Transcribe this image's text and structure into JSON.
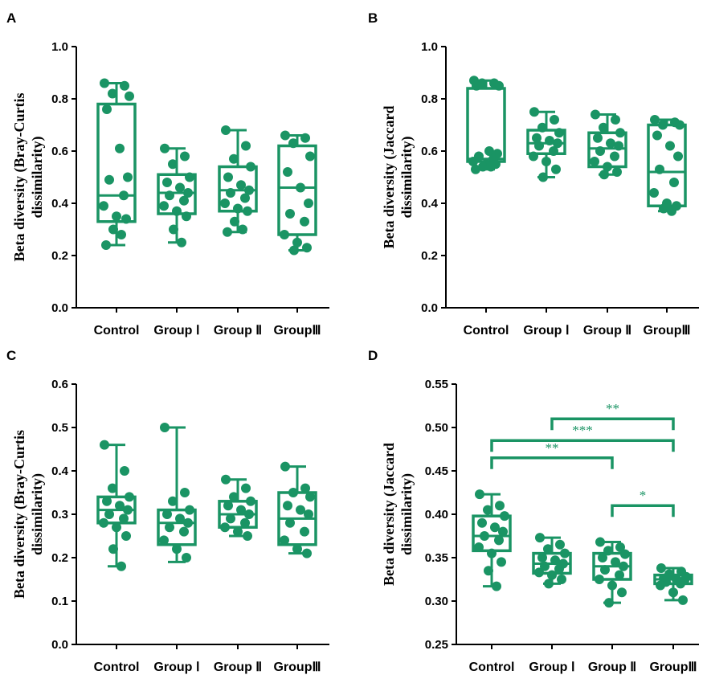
{
  "color": "#1a9464",
  "chart_data": [
    {
      "type": "box",
      "panel": "A",
      "categories": [
        "Control",
        "Group Ⅰ",
        "Group Ⅱ",
        "GroupⅢ"
      ],
      "ylabel_lines": [
        "Beta diversity (Bray-Curtis",
        "dissimilarity)"
      ],
      "ylim": [
        0,
        1.0
      ],
      "yticks": [
        0.0,
        0.2,
        0.4,
        0.6,
        0.8,
        1.0
      ],
      "tick_decimals": 1,
      "boxes": [
        {
          "min": 0.24,
          "q1": 0.33,
          "median": 0.43,
          "q3": 0.78,
          "max": 0.86
        },
        {
          "min": 0.25,
          "q1": 0.36,
          "median": 0.44,
          "q3": 0.51,
          "max": 0.61
        },
        {
          "min": 0.29,
          "q1": 0.37,
          "median": 0.45,
          "q3": 0.54,
          "max": 0.68
        },
        {
          "min": 0.22,
          "q1": 0.28,
          "median": 0.46,
          "q3": 0.62,
          "max": 0.66
        }
      ],
      "points": [
        [
          0.86,
          0.85,
          0.82,
          0.81,
          0.76,
          0.61,
          0.5,
          0.49,
          0.43,
          0.39,
          0.35,
          0.34,
          0.3,
          0.28,
          0.24
        ],
        [
          0.61,
          0.58,
          0.55,
          0.5,
          0.48,
          0.46,
          0.44,
          0.43,
          0.41,
          0.39,
          0.37,
          0.35,
          0.3,
          0.25
        ],
        [
          0.68,
          0.62,
          0.57,
          0.54,
          0.5,
          0.47,
          0.45,
          0.44,
          0.42,
          0.4,
          0.38,
          0.37,
          0.33,
          0.3,
          0.29
        ],
        [
          0.66,
          0.65,
          0.63,
          0.58,
          0.52,
          0.46,
          0.4,
          0.36,
          0.33,
          0.28,
          0.25,
          0.23,
          0.22
        ]
      ],
      "annotations": []
    },
    {
      "type": "box",
      "panel": "B",
      "categories": [
        "Control",
        "Group Ⅰ",
        "Group Ⅱ",
        "GroupⅢ"
      ],
      "ylabel_lines": [
        "Beta diversity (Jaccard",
        "dissimilarity)"
      ],
      "ylim": [
        0,
        1.0
      ],
      "yticks": [
        0.0,
        0.2,
        0.4,
        0.6,
        0.8,
        1.0
      ],
      "tick_decimals": 1,
      "boxes": [
        {
          "min": 0.53,
          "q1": 0.56,
          "median": 0.57,
          "q3": 0.84,
          "max": 0.87
        },
        {
          "min": 0.5,
          "q1": 0.59,
          "median": 0.63,
          "q3": 0.68,
          "max": 0.75
        },
        {
          "min": 0.51,
          "q1": 0.54,
          "median": 0.61,
          "q3": 0.67,
          "max": 0.74
        },
        {
          "min": 0.37,
          "q1": 0.39,
          "median": 0.52,
          "q3": 0.7,
          "max": 0.72
        }
      ],
      "points": [
        [
          0.87,
          0.86,
          0.86,
          0.85,
          0.85,
          0.6,
          0.59,
          0.58,
          0.57,
          0.56,
          0.55,
          0.55,
          0.54,
          0.54,
          0.53
        ],
        [
          0.75,
          0.72,
          0.69,
          0.67,
          0.65,
          0.64,
          0.63,
          0.62,
          0.6,
          0.58,
          0.56,
          0.53,
          0.5
        ],
        [
          0.74,
          0.72,
          0.69,
          0.67,
          0.65,
          0.63,
          0.62,
          0.6,
          0.58,
          0.56,
          0.54,
          0.52,
          0.51
        ],
        [
          0.72,
          0.71,
          0.7,
          0.7,
          0.66,
          0.62,
          0.58,
          0.53,
          0.48,
          0.44,
          0.4,
          0.39,
          0.38,
          0.37
        ]
      ],
      "annotations": []
    },
    {
      "type": "box",
      "panel": "C",
      "categories": [
        "Control",
        "Group Ⅰ",
        "Group Ⅱ",
        "GroupⅢ"
      ],
      "ylabel_lines": [
        "Beta diversity (Bray-Curtis",
        "dissimilarity)"
      ],
      "ylim": [
        0,
        0.6
      ],
      "yticks": [
        0.0,
        0.1,
        0.2,
        0.3,
        0.4,
        0.5,
        0.6
      ],
      "tick_decimals": 1,
      "boxes": [
        {
          "min": 0.18,
          "q1": 0.28,
          "median": 0.31,
          "q3": 0.34,
          "max": 0.46
        },
        {
          "min": 0.19,
          "q1": 0.23,
          "median": 0.28,
          "q3": 0.31,
          "max": 0.5
        },
        {
          "min": 0.25,
          "q1": 0.27,
          "median": 0.3,
          "q3": 0.33,
          "max": 0.38
        },
        {
          "min": 0.21,
          "q1": 0.23,
          "median": 0.29,
          "q3": 0.35,
          "max": 0.41
        }
      ],
      "points": [
        [
          0.46,
          0.4,
          0.36,
          0.34,
          0.33,
          0.32,
          0.31,
          0.3,
          0.29,
          0.28,
          0.27,
          0.25,
          0.22,
          0.18
        ],
        [
          0.5,
          0.35,
          0.33,
          0.31,
          0.3,
          0.29,
          0.28,
          0.27,
          0.26,
          0.24,
          0.22,
          0.2
        ],
        [
          0.38,
          0.36,
          0.34,
          0.33,
          0.32,
          0.31,
          0.3,
          0.29,
          0.28,
          0.27,
          0.26,
          0.25
        ],
        [
          0.41,
          0.36,
          0.35,
          0.34,
          0.32,
          0.31,
          0.3,
          0.28,
          0.26,
          0.24,
          0.22,
          0.21
        ]
      ],
      "annotations": []
    },
    {
      "type": "box",
      "panel": "D",
      "categories": [
        "Control",
        "Group Ⅰ",
        "Group Ⅱ",
        "GroupⅢ"
      ],
      "ylabel_lines": [
        "Beta diversity (Jaccard",
        "dissimilarity)"
      ],
      "ylim": [
        0.25,
        0.55
      ],
      "yticks": [
        0.25,
        0.3,
        0.35,
        0.4,
        0.45,
        0.5,
        0.55
      ],
      "tick_decimals": 2,
      "boxes": [
        {
          "min": 0.317,
          "q1": 0.358,
          "median": 0.375,
          "q3": 0.398,
          "max": 0.423
        },
        {
          "min": 0.32,
          "q1": 0.332,
          "median": 0.343,
          "q3": 0.355,
          "max": 0.373
        },
        {
          "min": 0.298,
          "q1": 0.325,
          "median": 0.34,
          "q3": 0.355,
          "max": 0.368
        },
        {
          "min": 0.301,
          "q1": 0.32,
          "median": 0.325,
          "q3": 0.33,
          "max": 0.338
        }
      ],
      "points": [
        [
          0.423,
          0.41,
          0.405,
          0.398,
          0.39,
          0.385,
          0.38,
          0.375,
          0.37,
          0.362,
          0.355,
          0.345,
          0.335,
          0.317
        ],
        [
          0.373,
          0.365,
          0.36,
          0.355,
          0.35,
          0.347,
          0.343,
          0.34,
          0.337,
          0.333,
          0.33,
          0.325,
          0.32
        ],
        [
          0.368,
          0.362,
          0.358,
          0.354,
          0.35,
          0.345,
          0.34,
          0.336,
          0.33,
          0.325,
          0.318,
          0.31,
          0.298
        ],
        [
          0.338,
          0.334,
          0.331,
          0.328,
          0.326,
          0.325,
          0.324,
          0.322,
          0.32,
          0.318,
          0.31,
          0.301
        ]
      ],
      "annotations": [
        {
          "from": 1,
          "to": 3,
          "level": 0.51,
          "label": "**"
        },
        {
          "from": 0,
          "to": 3,
          "level": 0.485,
          "label": "***"
        },
        {
          "from": 0,
          "to": 2,
          "level": 0.465,
          "label": "**"
        },
        {
          "from": 2,
          "to": 3,
          "level": 0.41,
          "label": "*"
        }
      ]
    }
  ]
}
